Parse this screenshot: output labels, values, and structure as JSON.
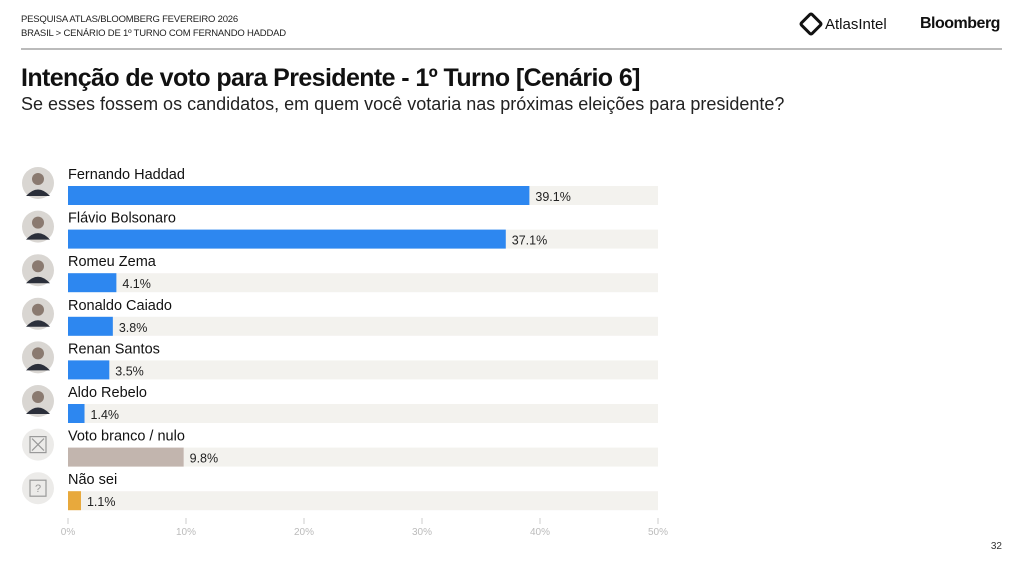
{
  "header": {
    "line1": "PESQUISA ATLAS/BLOOMBERG FEVEREIRO 2026",
    "line2": "BRASIL > CENÁRIO DE 1º TURNO COM FERNANDO HADDAD",
    "logo_atlas": "AtlasIntel",
    "logo_bloomberg": "Bloomberg"
  },
  "title": "Intenção de voto para Presidente - 1º Turno [Cenário 6]",
  "subtitle": "Se esses fossem os candidatos, em quem você votaria nas próximas eleições para presidente?",
  "page_number": "32",
  "chart_data": {
    "type": "bar",
    "orientation": "horizontal",
    "categories": [
      "Fernando Haddad",
      "Flávio Bolsonaro",
      "Romeu Zema",
      "Ronaldo Caiado",
      "Renan Santos",
      "Aldo Rebelo",
      "Voto branco / nulo",
      "Não sei"
    ],
    "values": [
      39.1,
      37.1,
      4.1,
      3.8,
      3.5,
      1.4,
      9.8,
      1.1
    ],
    "data_labels": [
      "39.1%",
      "37.1%",
      "4.1%",
      "3.8%",
      "3.5%",
      "1.4%",
      "9.8%",
      "1.1%"
    ],
    "colors": [
      "#2d87f0",
      "#2d87f0",
      "#2d87f0",
      "#2d87f0",
      "#2d87f0",
      "#2d87f0",
      "#c2b5ae",
      "#e8a93c"
    ],
    "icons": [
      "avatar",
      "avatar",
      "avatar",
      "avatar",
      "avatar",
      "avatar",
      "x-box-icon",
      "question-box-icon"
    ],
    "xlim": [
      0,
      50
    ],
    "xticks": [
      "0%",
      "10%",
      "20%",
      "30%",
      "40%",
      "50%"
    ],
    "track_color": "#f3f2ee"
  }
}
